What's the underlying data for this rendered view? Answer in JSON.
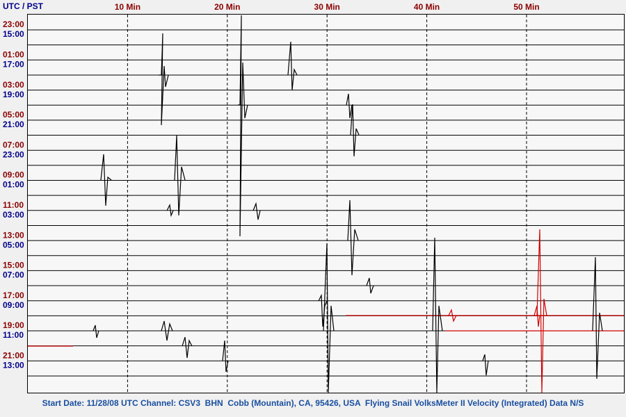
{
  "header": {
    "zone_label": "UTC / PST",
    "minute_ticks": [
      "10 Min",
      "20 Min",
      "30 Min",
      "40 Min",
      "50 Min"
    ]
  },
  "rows": [
    {
      "utc": "23:00",
      "pst": "15:00"
    },
    {
      "utc": "01:00",
      "pst": "17:00"
    },
    {
      "utc": "03:00",
      "pst": "19:00"
    },
    {
      "utc": "05:00",
      "pst": "21:00"
    },
    {
      "utc": "07:00",
      "pst": "23:00"
    },
    {
      "utc": "09:00",
      "pst": "01:00"
    },
    {
      "utc": "11:00",
      "pst": "03:00"
    },
    {
      "utc": "13:00",
      "pst": "05:00"
    },
    {
      "utc": "15:00",
      "pst": "07:00"
    },
    {
      "utc": "17:00",
      "pst": "09:00"
    },
    {
      "utc": "19:00",
      "pst": "11:00"
    },
    {
      "utc": "21:00",
      "pst": "13:00"
    }
  ],
  "footer": "Start Date: 11/28/08 UTC Channel: CSV3  BHN  Cobb (Mountain), CA, 95426, USA  Flying Snail VolksMeter II Velocity (Integrated) Data N/S"
}
